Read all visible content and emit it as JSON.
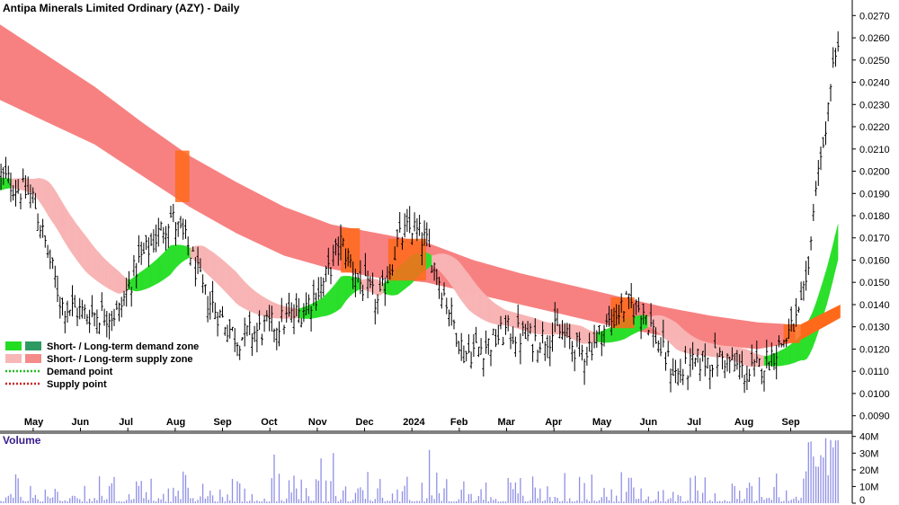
{
  "chart_data": {
    "type": "ohlc",
    "title": "Antipa Minerals Limited Ordinary (AZY) - Daily",
    "price_axis": {
      "ylim": [
        0.0083,
        0.0277
      ],
      "ticks": [
        "0.0090",
        "0.0100",
        "0.0110",
        "0.0120",
        "0.0130",
        "0.0140",
        "0.0150",
        "0.0160",
        "0.0170",
        "0.0180",
        "0.0190",
        "0.0200",
        "0.0210",
        "0.0220",
        "0.0230",
        "0.0240",
        "0.0250",
        "0.0260",
        "0.0270"
      ]
    },
    "volume_axis": {
      "title": "Volume",
      "ylim": [
        0,
        42
      ],
      "ticks": [
        {
          "v": 40,
          "label": "40M"
        },
        {
          "v": 30,
          "label": "30M"
        },
        {
          "v": 20,
          "label": "20M"
        },
        {
          "v": 10,
          "label": "10M"
        },
        {
          "v": 0,
          "label": "0"
        }
      ]
    },
    "months": [
      {
        "label": "May",
        "t": 0.7
      },
      {
        "label": "Jun",
        "t": 1.7
      },
      {
        "label": "Jul",
        "t": 2.7
      },
      {
        "label": "Aug",
        "t": 3.7
      },
      {
        "label": "Sep",
        "t": 4.7
      },
      {
        "label": "Oct",
        "t": 5.7
      },
      {
        "label": "Nov",
        "t": 6.7
      },
      {
        "label": "Dec",
        "t": 7.7
      },
      {
        "label": "2024",
        "t": 8.7
      },
      {
        "label": "Feb",
        "t": 9.7
      },
      {
        "label": "Mar",
        "t": 10.7
      },
      {
        "label": "Apr",
        "t": 11.7
      },
      {
        "label": "May",
        "t": 12.7
      },
      {
        "label": "Jun",
        "t": 13.7
      },
      {
        "label": "Jul",
        "t": 14.7
      },
      {
        "label": "Aug",
        "t": 15.7
      },
      {
        "label": "Sep",
        "t": 16.7
      }
    ],
    "price_path": [
      [
        0.0,
        0.0198
      ],
      [
        0.7,
        0.0188
      ],
      [
        0.95,
        0.0168
      ],
      [
        1.3,
        0.014
      ],
      [
        1.8,
        0.0136
      ],
      [
        2.5,
        0.0136
      ],
      [
        2.9,
        0.0158
      ],
      [
        3.3,
        0.017
      ],
      [
        3.6,
        0.018
      ],
      [
        4.0,
        0.0165
      ],
      [
        4.3,
        0.0145
      ],
      [
        5.0,
        0.0125
      ],
      [
        5.7,
        0.013
      ],
      [
        6.3,
        0.0136
      ],
      [
        6.8,
        0.0148
      ],
      [
        7.2,
        0.0168
      ],
      [
        7.6,
        0.015
      ],
      [
        8.0,
        0.014
      ],
      [
        8.4,
        0.0168
      ],
      [
        8.7,
        0.0175
      ],
      [
        9.0,
        0.0168
      ],
      [
        9.3,
        0.015
      ],
      [
        9.8,
        0.0118
      ],
      [
        10.3,
        0.0122
      ],
      [
        10.7,
        0.0128
      ],
      [
        11.3,
        0.0124
      ],
      [
        11.8,
        0.0128
      ],
      [
        12.3,
        0.0118
      ],
      [
        12.8,
        0.013
      ],
      [
        13.2,
        0.014
      ],
      [
        13.6,
        0.0138
      ],
      [
        14.0,
        0.0118
      ],
      [
        14.3,
        0.0108
      ],
      [
        14.8,
        0.0115
      ],
      [
        15.3,
        0.0116
      ],
      [
        15.8,
        0.0108
      ],
      [
        16.2,
        0.0115
      ],
      [
        16.6,
        0.0125
      ],
      [
        16.9,
        0.0135
      ],
      [
        17.05,
        0.0152
      ],
      [
        17.2,
        0.0185
      ],
      [
        17.3,
        0.0205
      ],
      [
        17.45,
        0.022
      ],
      [
        17.55,
        0.024
      ],
      [
        17.65,
        0.0255
      ]
    ],
    "long_term_supply_zone": {
      "upper": [
        [
          0,
          0.0266
        ],
        [
          1,
          0.0252
        ],
        [
          2,
          0.0238
        ],
        [
          3,
          0.0222
        ],
        [
          4,
          0.0207
        ],
        [
          5,
          0.0195
        ],
        [
          6,
          0.0184
        ],
        [
          7,
          0.0176
        ],
        [
          8,
          0.0172
        ],
        [
          9,
          0.0168
        ],
        [
          10,
          0.016
        ],
        [
          11,
          0.0154
        ],
        [
          12,
          0.0149
        ],
        [
          13,
          0.0144
        ],
        [
          14,
          0.0139
        ],
        [
          15,
          0.0135
        ],
        [
          16,
          0.0132
        ],
        [
          16.8,
          0.0131
        ]
      ],
      "lower": [
        [
          0,
          0.0232
        ],
        [
          1,
          0.0222
        ],
        [
          2,
          0.0212
        ],
        [
          3,
          0.0198
        ],
        [
          4,
          0.0184
        ],
        [
          5,
          0.0172
        ],
        [
          6,
          0.0162
        ],
        [
          7,
          0.0156
        ],
        [
          8,
          0.0152
        ],
        [
          9,
          0.015
        ],
        [
          10,
          0.0145
        ],
        [
          11,
          0.014
        ],
        [
          12,
          0.0135
        ],
        [
          13,
          0.013
        ],
        [
          14,
          0.0126
        ],
        [
          15,
          0.0122
        ],
        [
          16,
          0.012
        ],
        [
          16.8,
          0.0123
        ]
      ]
    },
    "legend": [
      {
        "label": "Short- / Long-term demand zone",
        "swatches": [
          "#22dd22",
          "#2e9a63"
        ]
      },
      {
        "label": "Short- / Long-term supply zone",
        "swatches": [
          "#f8b7b7",
          "#f48a8a"
        ]
      },
      {
        "label": "Demand point",
        "dotted": "#22bb22"
      },
      {
        "label": "Supply point",
        "dotted": "#cc2222"
      }
    ],
    "colors": {
      "long_supply": "#f78181",
      "short_supply": "#f8b4b4",
      "short_demand": "#2adf2a",
      "touch": "#ff6a1a",
      "bars": "#000000",
      "volume": "#8f8fe6"
    }
  }
}
